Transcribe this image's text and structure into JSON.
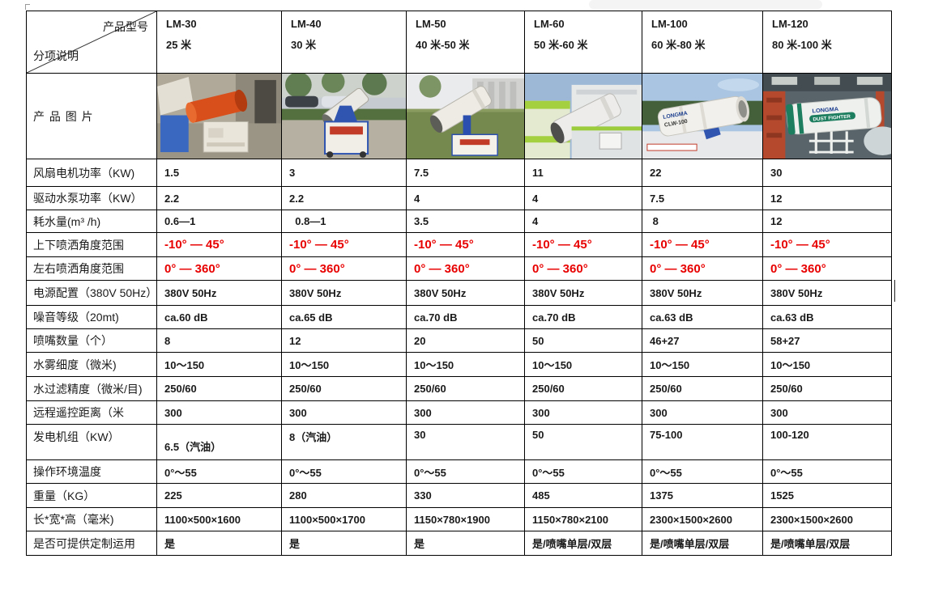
{
  "accent_colors": {
    "red_text": "#e80000",
    "border": "#000000",
    "page_bg": "#ffffff"
  },
  "header": {
    "corner_top_right": "产品型号",
    "corner_bottom_left": "分项说明",
    "models": [
      {
        "name": "LM-30",
        "range": "25 米"
      },
      {
        "name": "LM-40",
        "range": "30 米"
      },
      {
        "name": "LM-50",
        "range": "40 米-50 米"
      },
      {
        "name": "LM-60",
        "range": "50 米-60 米"
      },
      {
        "name": "LM-100",
        "range": "60 米-80 米"
      },
      {
        "name": "LM-120",
        "range": "80 米-100 米"
      }
    ]
  },
  "image_row": {
    "label": "产 品 图 片",
    "photos": [
      {
        "alt": "LM-30 橙色雾炮机样机"
      },
      {
        "alt": "LM-40 移动式喷雾机（蓝白推车）"
      },
      {
        "alt": "LM-50 雾炮机（草地蓝色支架）"
      },
      {
        "alt": "LM-60 车载雾炮机（绿色卡车）"
      },
      {
        "alt": "LM-100 车载雾炮机",
        "brand": "LONGMA",
        "model_badge": "CLW-100"
      },
      {
        "alt": "LM-120 厂房内雾炮机",
        "brand": "LONGMA",
        "model_badge": "DUST FIGHTER"
      }
    ]
  },
  "rows": [
    {
      "label": "风扇电机功率（KW)",
      "values": [
        "1.5",
        "3",
        "7.5",
        "11",
        "22",
        "30"
      ]
    },
    {
      "label": "驱动水泵功率（KW）",
      "values": [
        "2.2",
        "2.2",
        "4",
        "4",
        "7.5",
        "12"
      ]
    },
    {
      "label": "耗水量(m³ /h)",
      "values": [
        "0.6—1",
        "  0.8—1",
        "3.5",
        "4",
        " 8",
        "12"
      ]
    },
    {
      "label": "上下喷洒角度范围",
      "red": true,
      "values": [
        "-10° — 45°",
        "-10° — 45°",
        "-10° — 45°",
        "-10° — 45°",
        "-10° — 45°",
        "-10° — 45°"
      ]
    },
    {
      "label": "左右喷洒角度范围",
      "red": true,
      "values": [
        "0° — 360°",
        "0° — 360°",
        "0° — 360°",
        "0° — 360°",
        "0° — 360°",
        "0° — 360°"
      ]
    },
    {
      "label": "电源配置（380V 50Hz）",
      "values": [
        "380V 50Hz",
        "380V 50Hz",
        "380V 50Hz",
        "380V 50Hz",
        "380V 50Hz",
        "380V 50Hz"
      ]
    },
    {
      "label": "噪音等级（20mt)",
      "values": [
        "ca.60 dB",
        "ca.65 dB",
        "ca.70 dB",
        "ca.70 dB",
        "ca.63 dB",
        "ca.63 dB"
      ]
    },
    {
      "label": "喷嘴数量（个）",
      "values": [
        "8",
        "12",
        "20",
        "50",
        "46+27",
        "58+27"
      ]
    },
    {
      "label": "水雾细度（微米)",
      "values": [
        "10～150",
        "10～150",
        "10～150",
        "10～150",
        "10～150",
        "10～150"
      ]
    },
    {
      "label": "水过滤精度（微米/目)",
      "values": [
        "250/60",
        "250/60",
        "250/60",
        "250/60",
        "250/60",
        "250/60"
      ]
    },
    {
      "label": "远程遥控距离（米",
      "values": [
        "300",
        "300",
        "300",
        "300",
        "300",
        "300"
      ]
    },
    {
      "label": "发电机组（KW）",
      "tall": true,
      "values": [
        "6.5（汽油）",
        "8（汽油）",
        "30",
        "50",
        "75-100",
        "100-120"
      ]
    },
    {
      "label": "操作环境温度",
      "values": [
        "0°～55",
        "0°～55",
        "0°～55",
        "0°～55",
        "0°～55",
        "0°～55"
      ]
    },
    {
      "label": "重量（KG）",
      "values": [
        "225",
        "280",
        "330",
        "485",
        "1375",
        "1525"
      ]
    },
    {
      "label": "长*宽*高（毫米)",
      "values": [
        "1100×500×1600",
        "1100×500×1700",
        "1150×780×1900",
        "1150×780×2100",
        "2300×1500×2600",
        "2300×1500×2600"
      ]
    },
    {
      "label": "是否可提供定制运用",
      "values": [
        "是",
        "是",
        "是",
        "是/喷嘴单层/双层",
        "是/喷嘴单层/双层",
        "是/喷嘴单层/双层"
      ]
    }
  ]
}
